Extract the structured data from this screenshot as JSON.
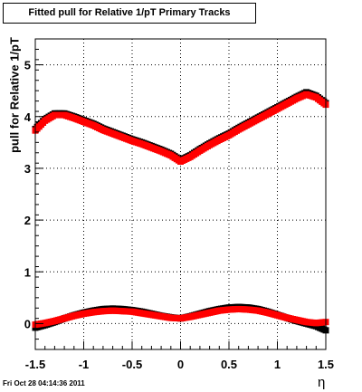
{
  "chart_data": {
    "type": "scatter",
    "title": "Fitted pull for Relative 1/pT  Primary Tracks",
    "xlabel": "η",
    "ylabel": "pull for Relative 1/pT",
    "xlim": [
      -1.5,
      1.5
    ],
    "ylim": [
      -0.5,
      5.5
    ],
    "xticks": [
      "-1.5",
      "-1",
      "-0.5",
      "0",
      "0.5",
      "1",
      "1.5"
    ],
    "yticks": [
      "0",
      "1",
      "2",
      "3",
      "4",
      "5"
    ],
    "grid": true,
    "series": [
      {
        "color": "#000000",
        "role": "upper-black",
        "x": [
          -1.5,
          -1.4,
          -1.3,
          -1.2,
          -1.1,
          -1.0,
          -0.9,
          -0.8,
          -0.7,
          -0.6,
          -0.5,
          -0.4,
          -0.3,
          -0.2,
          -0.1,
          0.0,
          0.1,
          0.2,
          0.3,
          0.4,
          0.5,
          0.6,
          0.7,
          0.8,
          0.9,
          1.0,
          1.1,
          1.2,
          1.3,
          1.4,
          1.5
        ],
        "y": [
          3.76,
          3.95,
          4.06,
          4.06,
          4.0,
          3.93,
          3.86,
          3.77,
          3.7,
          3.63,
          3.56,
          3.5,
          3.43,
          3.36,
          3.28,
          3.16,
          3.25,
          3.37,
          3.48,
          3.58,
          3.67,
          3.78,
          3.88,
          3.98,
          4.08,
          4.18,
          4.28,
          4.38,
          4.47,
          4.4,
          4.26
        ]
      },
      {
        "color": "#ff0000",
        "role": "upper-red",
        "x": [
          -1.5,
          -1.4,
          -1.3,
          -1.2,
          -1.1,
          -1.0,
          -0.9,
          -0.8,
          -0.7,
          -0.6,
          -0.5,
          -0.4,
          -0.3,
          -0.2,
          -0.1,
          0.0,
          0.1,
          0.2,
          0.3,
          0.4,
          0.5,
          0.6,
          0.7,
          0.8,
          0.9,
          1.0,
          1.1,
          1.2,
          1.3,
          1.4,
          1.5
        ],
        "y": [
          3.73,
          3.92,
          4.03,
          4.03,
          3.97,
          3.9,
          3.83,
          3.74,
          3.67,
          3.6,
          3.53,
          3.47,
          3.4,
          3.33,
          3.25,
          3.13,
          3.22,
          3.34,
          3.45,
          3.55,
          3.64,
          3.75,
          3.85,
          3.95,
          4.05,
          4.15,
          4.25,
          4.35,
          4.43,
          4.37,
          4.23
        ]
      },
      {
        "color": "#000000",
        "role": "lower-black",
        "x": [
          -1.5,
          -1.4,
          -1.3,
          -1.2,
          -1.1,
          -1.0,
          -0.9,
          -0.8,
          -0.7,
          -0.6,
          -0.5,
          -0.4,
          -0.3,
          -0.2,
          -0.1,
          0.0,
          0.1,
          0.2,
          0.3,
          0.4,
          0.5,
          0.6,
          0.7,
          0.8,
          0.9,
          1.0,
          1.1,
          1.2,
          1.3,
          1.4,
          1.5
        ],
        "y": [
          -0.08,
          -0.03,
          0.03,
          0.1,
          0.16,
          0.21,
          0.25,
          0.28,
          0.29,
          0.28,
          0.26,
          0.23,
          0.19,
          0.15,
          0.12,
          0.1,
          0.14,
          0.19,
          0.24,
          0.28,
          0.31,
          0.32,
          0.31,
          0.28,
          0.23,
          0.17,
          0.11,
          0.05,
          0.0,
          -0.05,
          -0.13
        ]
      },
      {
        "color": "#ff0000",
        "role": "lower-red",
        "x": [
          -1.5,
          -1.4,
          -1.3,
          -1.2,
          -1.1,
          -1.0,
          -0.9,
          -0.8,
          -0.7,
          -0.6,
          -0.5,
          -0.4,
          -0.3,
          -0.2,
          -0.1,
          0.0,
          0.1,
          0.2,
          0.3,
          0.4,
          0.5,
          0.6,
          0.7,
          0.8,
          0.9,
          1.0,
          1.1,
          1.2,
          1.3,
          1.4,
          1.5
        ],
        "y": [
          -0.02,
          0.01,
          0.05,
          0.1,
          0.15,
          0.19,
          0.22,
          0.24,
          0.25,
          0.24,
          0.23,
          0.2,
          0.17,
          0.14,
          0.11,
          0.1,
          0.13,
          0.17,
          0.21,
          0.25,
          0.27,
          0.28,
          0.27,
          0.25,
          0.21,
          0.16,
          0.11,
          0.07,
          0.03,
          0.01,
          0.03
        ]
      }
    ]
  },
  "footer": {
    "timestamp": "Fri Oct 28 04:14:36 2011"
  }
}
